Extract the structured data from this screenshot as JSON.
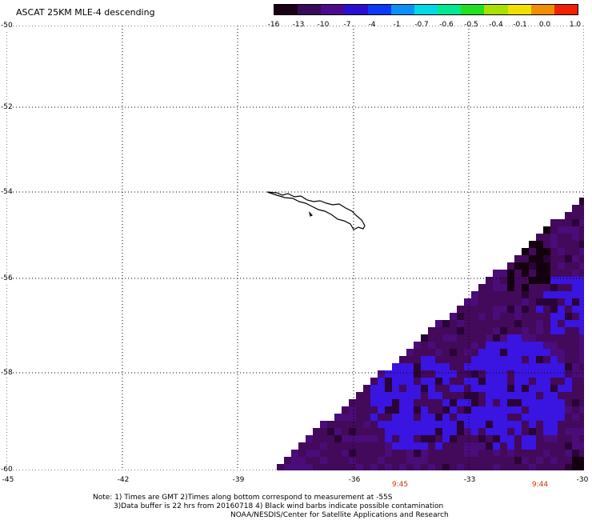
{
  "title": "ASCAT 25KM MLE-4 descending",
  "legend": {
    "labels": [
      "-16",
      "-13",
      "-10",
      "-7",
      "-4",
      "-1",
      "-0.7",
      "-0.6",
      "-0.5",
      "-0.4",
      "-0.1",
      "0.0",
      "1.0"
    ],
    "colors": [
      "#1a0014",
      "#3a0a5a",
      "#4c0b8e",
      "#2a10ce",
      "#0a3af8",
      "#0a90f8",
      "#00d8e8",
      "#00e890",
      "#20e020",
      "#a8e000",
      "#f0e000",
      "#f09000",
      "#f02000"
    ]
  },
  "axes": {
    "lat_labels": [
      "-50",
      "-52",
      "-54",
      "-56",
      "-58",
      "-60"
    ],
    "lon_labels": [
      "-45",
      "-42",
      "-39",
      "-36",
      "-33",
      "-30"
    ]
  },
  "time_labels": [
    "9:45",
    "9:44"
  ],
  "notes": {
    "line1": "Note: 1) Times are GMT 2)Times along bottom correspond to measurement at -55S",
    "line2": "3)Data buffer is 22 hrs from 20160718 4) Black wind barbs indicate possible contamination",
    "line3": "NOAA/NESDIS/Center for Satellite Applications and Research"
  },
  "colors": {
    "swath_base": "#43095a",
    "swath_blue": "#3a14e0",
    "swath_dark": "#14000e"
  }
}
